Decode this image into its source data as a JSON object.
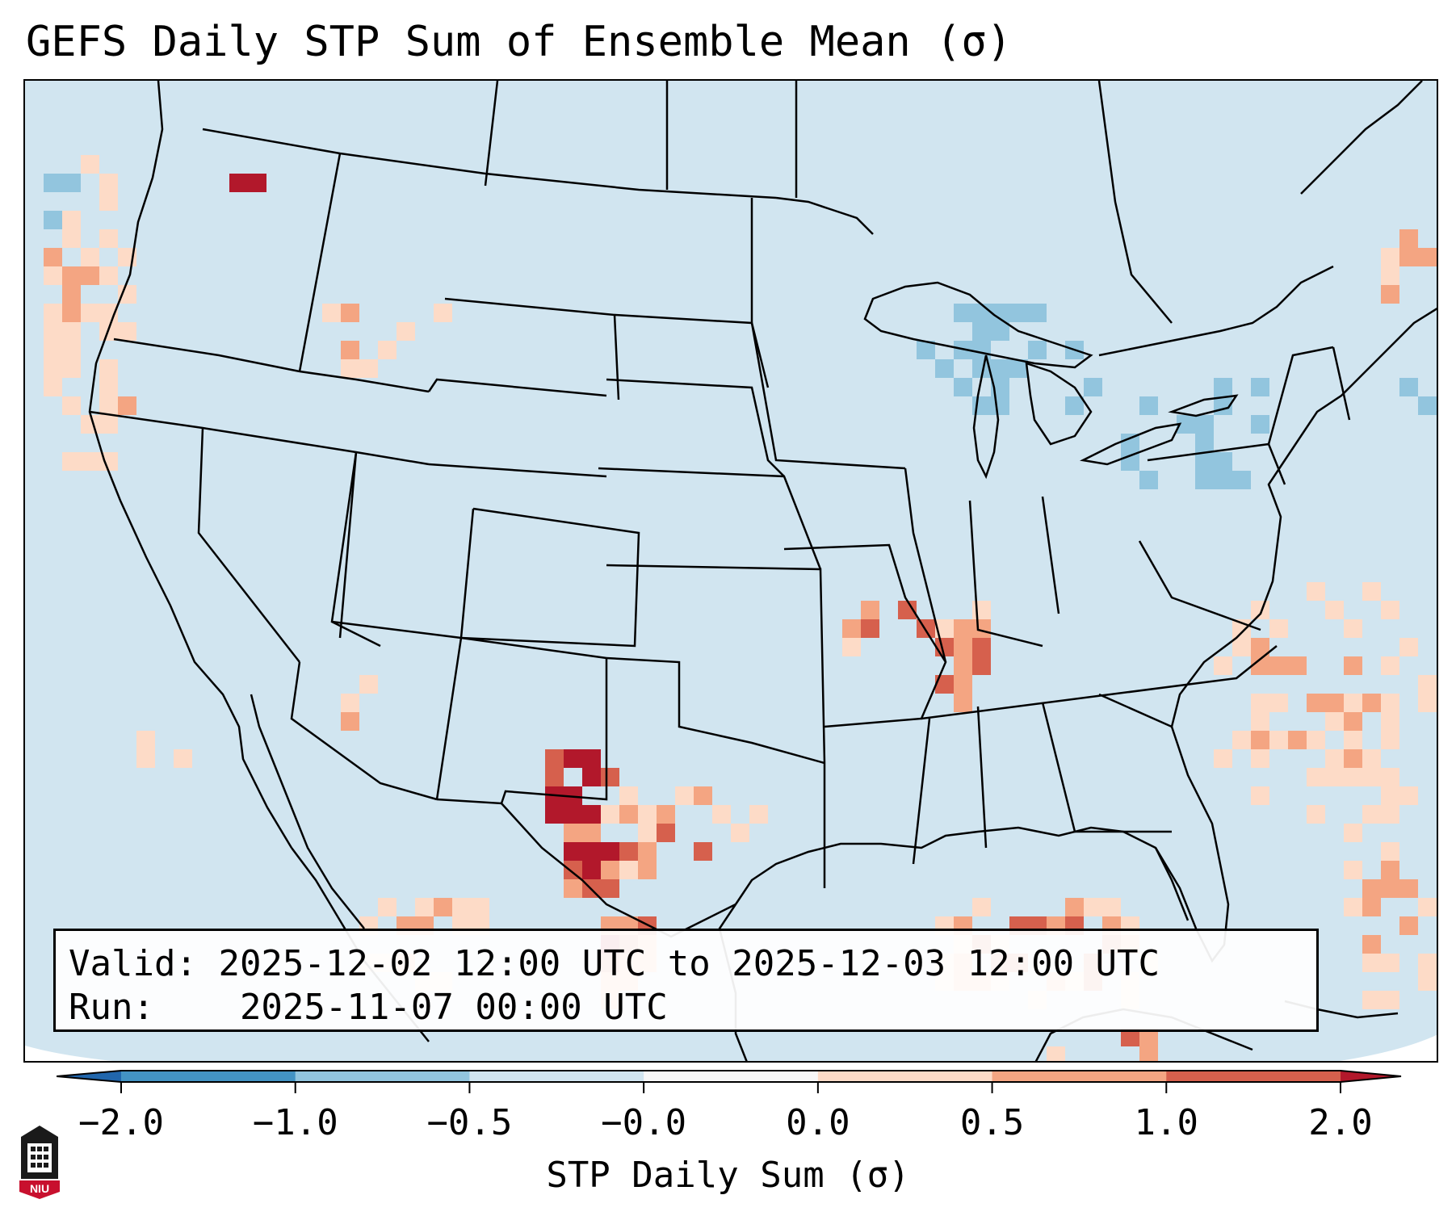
{
  "title": "GEFS Daily STP Sum of Ensemble Mean (σ)",
  "info": {
    "valid_label": "Valid:",
    "valid_value": "2025-12-02 12:00 UTC to 2025-12-03 12:00 UTC",
    "run_label": "Run:",
    "run_value": "2025-11-07 00:00 UTC"
  },
  "colorbar": {
    "label": "STP Daily Sum (σ)",
    "ticks": [
      "−2.0",
      "−1.0",
      "−0.5",
      "−0.0",
      "0.0",
      "0.5",
      "1.0",
      "2.0"
    ],
    "bins": [
      {
        "range": "< -2.0",
        "color": "#2166ac"
      },
      {
        "range": "-2.0 to -1.0",
        "color": "#4393c3"
      },
      {
        "range": "-1.0 to -0.5",
        "color": "#92c5de"
      },
      {
        "range": "-0.5 to -0.0",
        "color": "#d1e5f0"
      },
      {
        "range": "-0.0 to 0.0",
        "color": "#f7f7f7"
      },
      {
        "range": "0.0 to 0.5",
        "color": "#fddbc7"
      },
      {
        "range": "0.5 to 1.0",
        "color": "#f4a582"
      },
      {
        "range": "1.0 to 2.0",
        "color": "#d6604d"
      },
      {
        "range": "> 2.0",
        "color": "#b2182b"
      }
    ]
  },
  "map": {
    "region": "Contiguous United States",
    "background_color": "#d1e5f0",
    "notable_features": [
      "High STP anomaly (>2.0) over west Texas and far southwest Texas",
      "Elevated values (0.0 to 2.0) along the Mid-Mississippi Valley (Missouri / Illinois / Tennessee)",
      "Elevated values over the Gulf of Mexico and western Atlantic",
      "Negative anomalies (-1.0 to -0.5) over the Great Lakes and Northeast"
    ]
  },
  "logo": {
    "text": "NIU",
    "name": "Northern Illinois University"
  }
}
